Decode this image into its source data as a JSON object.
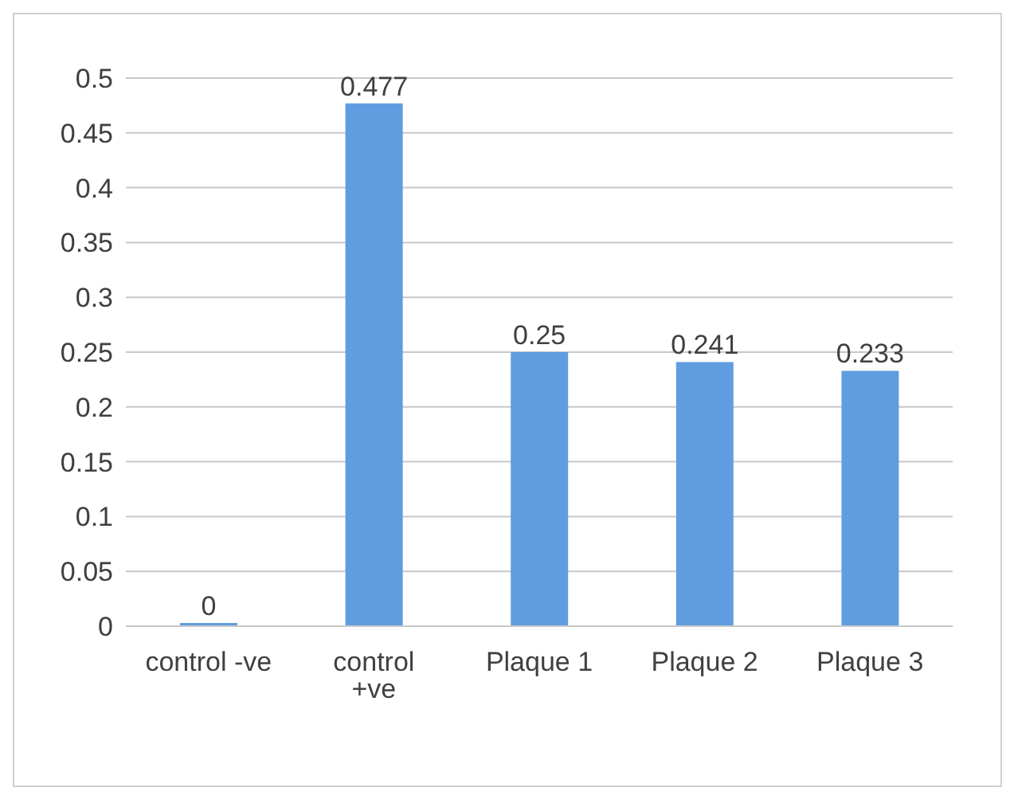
{
  "chart_data": {
    "type": "bar",
    "categories": [
      "control -ve",
      "control +ve",
      "Plaque 1",
      "Plaque 2",
      "Plaque 3"
    ],
    "values": [
      0,
      0.477,
      0.25,
      0.241,
      0.233
    ],
    "color": "#5f9de0",
    "ylim": [
      0,
      0.5
    ],
    "yticks": [
      0,
      0.05,
      0.1,
      0.15,
      0.2,
      0.25,
      0.3,
      0.35,
      0.4,
      0.45,
      0.5
    ],
    "grid": "y",
    "data_labels": true
  }
}
